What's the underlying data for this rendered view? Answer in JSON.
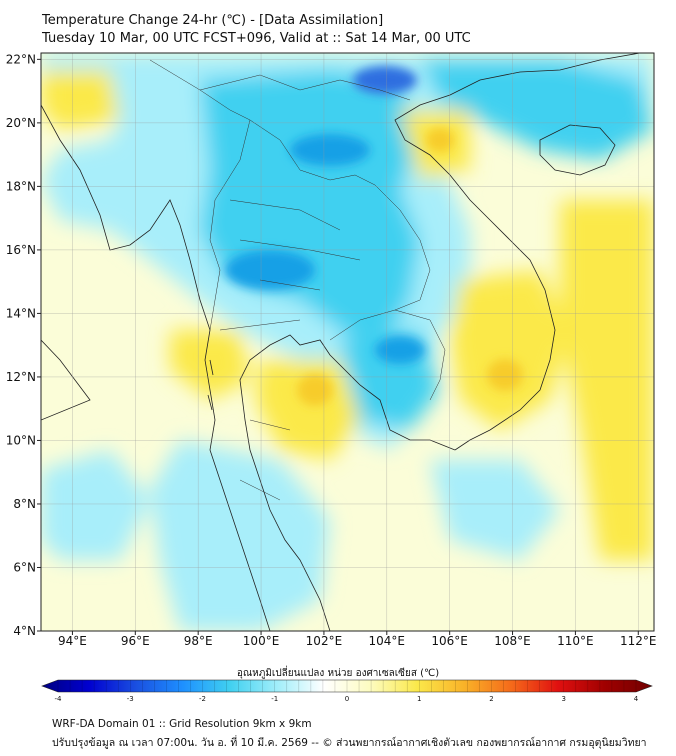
{
  "title": {
    "line1": "Temperature Change 24-hr (℃) - [Data Assimilation]",
    "line2": "Tuesday 10 Mar, 00 UTC FCST+096, Valid at :: Sat 14 Mar, 00 UTC"
  },
  "map": {
    "lon_range": [
      93,
      112.5
    ],
    "lat_range": [
      4,
      22.2
    ],
    "lon_ticks": [
      "94°E",
      "96°E",
      "98°E",
      "100°E",
      "102°E",
      "104°E",
      "106°E",
      "108°E",
      "110°E",
      "112°E"
    ],
    "lat_ticks": [
      "4°N",
      "6°N",
      "8°N",
      "10°N",
      "12°N",
      "14°N",
      "16°N",
      "18°N",
      "20°N",
      "22°N"
    ],
    "colors": {
      "ocean": "#fbfdd8",
      "cold_light": "#a8eefa",
      "cold_mid": "#3fd0f0",
      "cold_strong": "#18a0e6",
      "cold_core": "#2d6ee0",
      "warm": "#fbe94a",
      "warm_strong": "#f7cc2a"
    }
  },
  "colorbar": {
    "label": "อุณหภูมิเปลี่ยนแปลง หน่วย องศาเซลเซียส (℃)",
    "min": -4,
    "max": 4,
    "ticks": [
      "-4",
      "-3",
      "-2",
      "-1",
      "0",
      "1",
      "2",
      "3",
      "4"
    ],
    "stops": [
      "#000080",
      "#0000d0",
      "#1a4fe0",
      "#1e90ff",
      "#40d0f0",
      "#a0eefa",
      "#ffffff",
      "#fdfcc0",
      "#fbe84a",
      "#f9b228",
      "#f56a1a",
      "#e01010",
      "#a00000",
      "#700000"
    ]
  },
  "footer": {
    "line1": "WRF-DA Domain 01 :: Grid Resolution 9km x 9km",
    "line2": "ปรับปรุงข้อมูล ณ เวลา 07:00น. วัน อ. ที่ 10 มี.ค. 2569 -- © ส่วนพยากรณ์อากาศเชิงตัวเลข กองพยากรณ์อากาศ กรมอุตุนิยมวิทยา"
  }
}
